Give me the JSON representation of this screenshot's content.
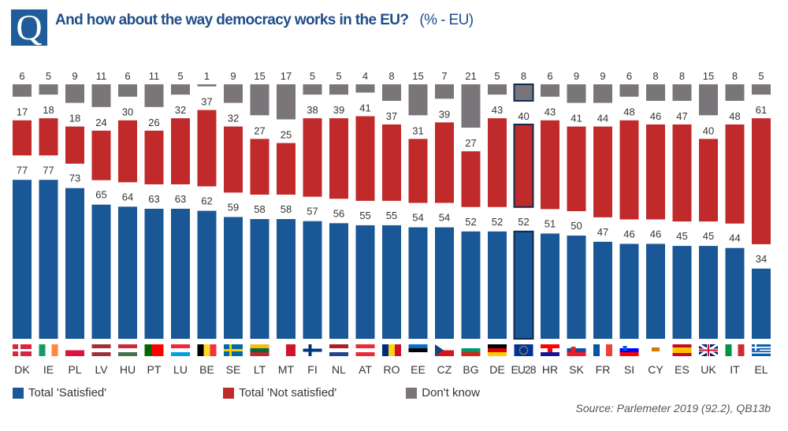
{
  "header": {
    "q_icon": "Q",
    "title": "And how about the way democracy works in the EU?",
    "unit": "(% - EU)"
  },
  "colors": {
    "satisfied": "#1a5796",
    "not_satisfied": "#c12a2a",
    "dont_know": "#7a7579",
    "highlight_border": "#0e2a4d"
  },
  "chart_data": {
    "type": "bar",
    "title": "And how about the way democracy works in the EU? (% - EU)",
    "categories": [
      "DK",
      "IE",
      "PL",
      "LV",
      "HU",
      "PT",
      "LU",
      "BE",
      "SE",
      "LT",
      "MT",
      "FI",
      "NL",
      "AT",
      "RO",
      "EE",
      "CZ",
      "BG",
      "DE",
      "EU28",
      "HR",
      "SK",
      "FR",
      "SI",
      "CY",
      "ES",
      "UK",
      "IT",
      "EL"
    ],
    "highlight": "EU28",
    "series": [
      {
        "name": "Total 'Satisfied'",
        "values": [
          77,
          77,
          73,
          65,
          64,
          63,
          63,
          62,
          59,
          58,
          58,
          57,
          56,
          55,
          55,
          54,
          54,
          52,
          52,
          52,
          51,
          50,
          47,
          46,
          46,
          45,
          45,
          44,
          34
        ]
      },
      {
        "name": "Total 'Not satisfied'",
        "values": [
          17,
          18,
          18,
          24,
          30,
          26,
          32,
          37,
          32,
          27,
          25,
          38,
          39,
          41,
          37,
          31,
          39,
          27,
          43,
          40,
          43,
          41,
          44,
          48,
          46,
          47,
          40,
          48,
          61
        ]
      },
      {
        "name": "Don't know",
        "values": [
          6,
          5,
          9,
          11,
          6,
          11,
          5,
          1,
          9,
          15,
          17,
          5,
          5,
          4,
          8,
          15,
          7,
          21,
          5,
          8,
          6,
          9,
          9,
          6,
          8,
          8,
          15,
          8,
          5
        ]
      }
    ],
    "legend": "bottom-left",
    "grid": false,
    "ylim": [
      0,
      100
    ]
  },
  "source": "Source: Parlemeter 2019 (92.2), QB13b"
}
